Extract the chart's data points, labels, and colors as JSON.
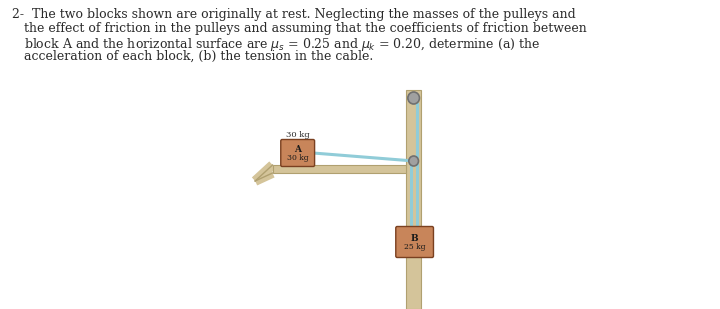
{
  "background_color": "#ffffff",
  "text_color": "#2a2a2a",
  "line1": "2-  The two blocks shown are originally at rest. Neglecting the masses of the pulleys and",
  "line2": "the effect of friction in the pulleys and assuming that the coefficients of friction between",
  "line3": "block A and the horizontal surface are $\\mu_s$ = 0.25 and $\\mu_k$ = 0.20, determine (a) the",
  "line4": "acceleration of each block, (b) the tension in the cable.",
  "block_A_label": "A",
  "block_A_mass": "30 kg",
  "block_B_label": "B",
  "block_B_mass": "25 kg",
  "surface_color": "#d4c49a",
  "block_A_color": "#c8855a",
  "block_B_color": "#c8855a",
  "cable_color": "#90ccd8",
  "wall_color": "#d4c49a",
  "pulley_color": "#707070",
  "bracket_color": "#d4c49a"
}
